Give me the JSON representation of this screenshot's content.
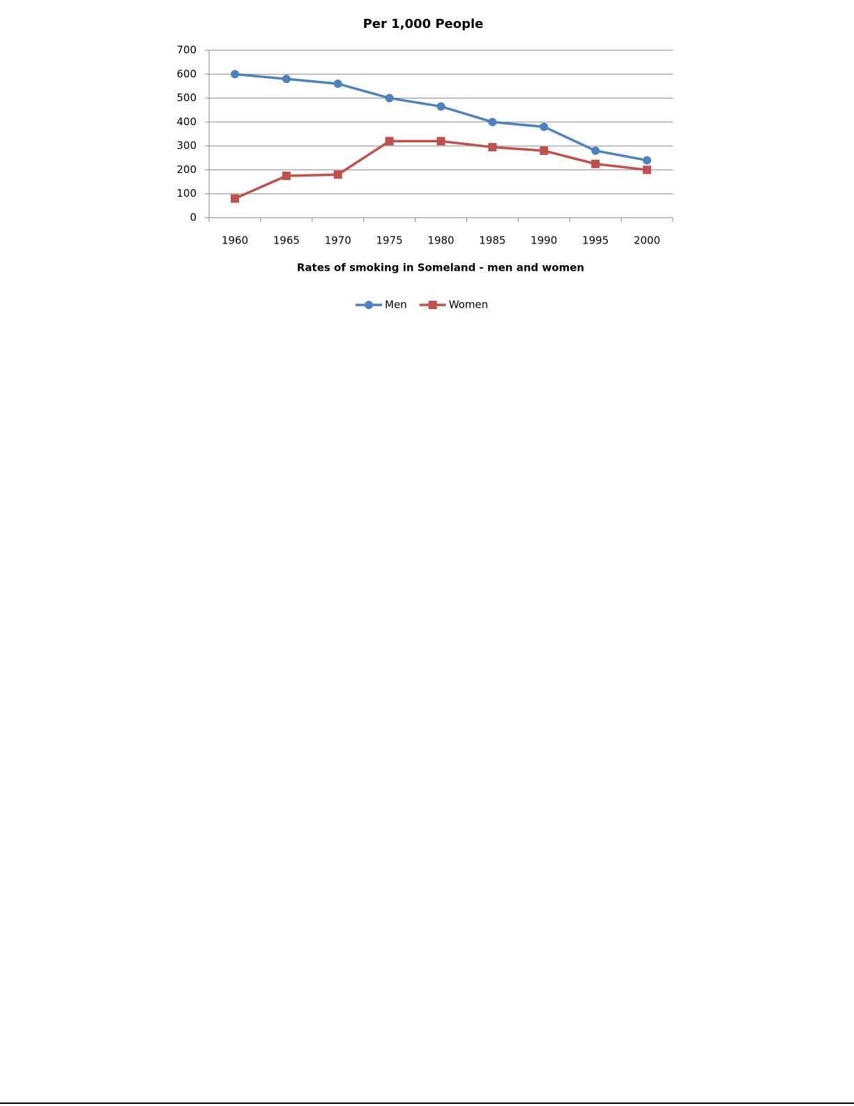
{
  "chart_data": {
    "type": "line",
    "title": "Per 1,000 People",
    "x_label": "Rates of smoking in Someland - men and women",
    "categories": [
      "1960",
      "1965",
      "1970",
      "1975",
      "1980",
      "1985",
      "1990",
      "1995",
      "2000"
    ],
    "series": [
      {
        "name": "Men",
        "color": "#4f81bd",
        "marker": "circle",
        "values": [
          600,
          580,
          560,
          500,
          465,
          400,
          380,
          280,
          240
        ]
      },
      {
        "name": "Women",
        "color": "#c0504d",
        "marker": "square",
        "values": [
          80,
          175,
          180,
          320,
          320,
          295,
          280,
          225,
          200
        ]
      }
    ],
    "ylim": [
      0,
      700
    ],
    "yticks": [
      0,
      100,
      200,
      300,
      400,
      500,
      600,
      700
    ],
    "grid": true,
    "legend": "bottom"
  }
}
